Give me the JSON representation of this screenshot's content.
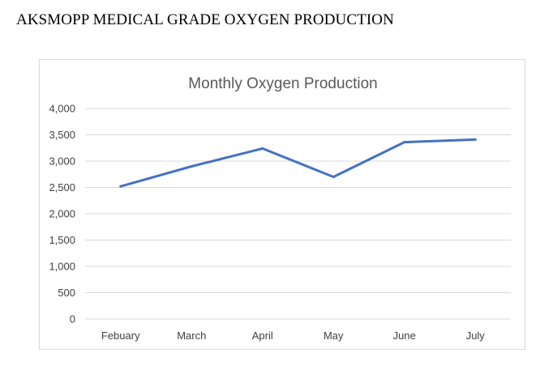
{
  "document": {
    "heading": "AKSMOPP MEDICAL GRADE OXYGEN PRODUCTION"
  },
  "chart_data": {
    "type": "line",
    "title": "Monthly Oxygen Production",
    "xlabel": "",
    "ylabel": "",
    "categories": [
      "Febuary",
      "March",
      "April",
      "May",
      "June",
      "July"
    ],
    "series": [
      {
        "values": [
          2520,
          2900,
          3240,
          2700,
          3360,
          3410
        ]
      }
    ],
    "ylim": [
      0,
      4000
    ],
    "yticks": [
      0,
      500,
      1000,
      1500,
      2000,
      2500,
      3000,
      3500,
      4000
    ],
    "ytick_labels": [
      "0",
      "500",
      "1,000",
      "1,500",
      "2,000",
      "2,500",
      "3,000",
      "3,500",
      "4,000"
    ],
    "grid": true,
    "legend": "none",
    "colors": {
      "series": "#4472c4",
      "grid": "#d9d9d9"
    }
  }
}
